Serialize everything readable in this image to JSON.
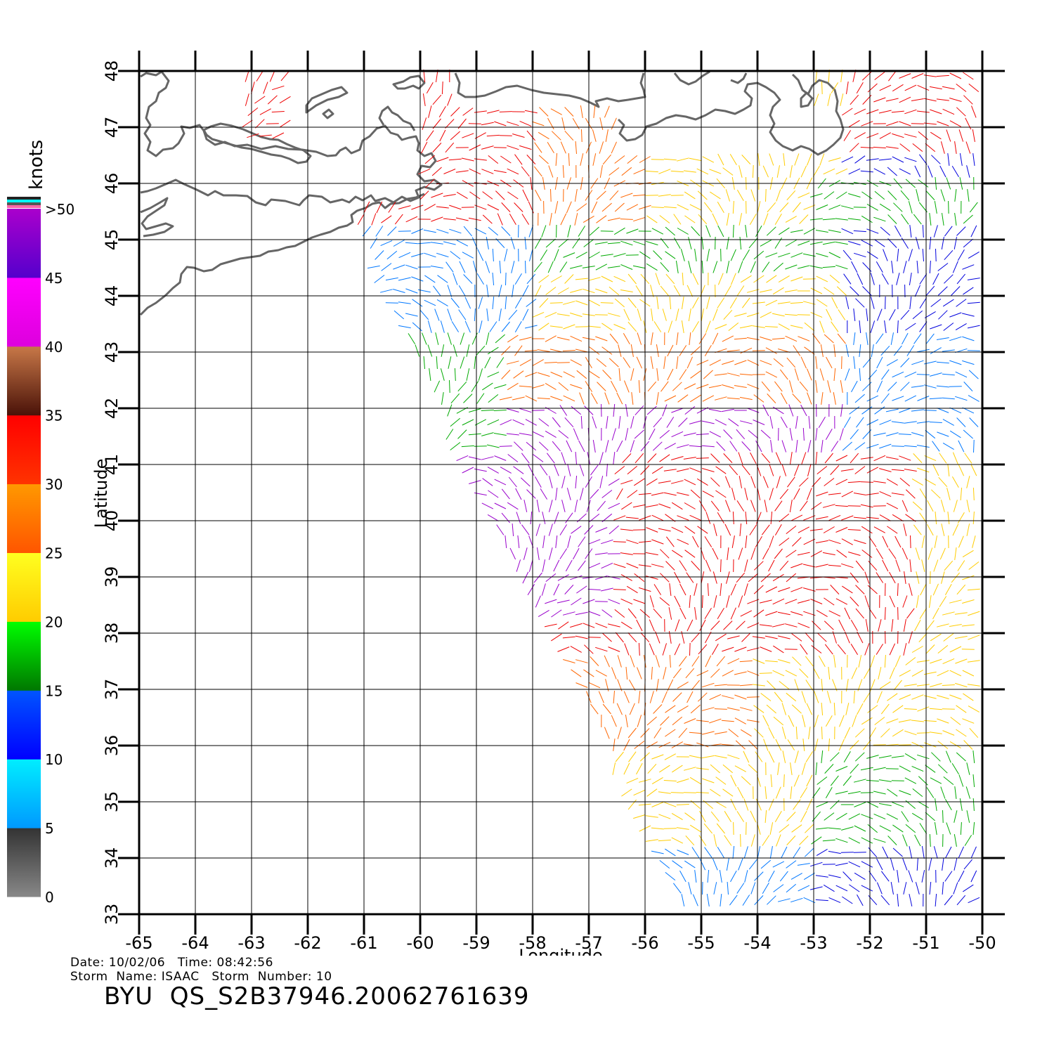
{
  "map": {
    "axes": {
      "xlabel": "Longitude",
      "ylabel": "Latitude",
      "lon_range": [
        -65,
        -50
      ],
      "lat_range": [
        33,
        48
      ],
      "lon_ticks": [
        "-65",
        "-64",
        "-63",
        "-62",
        "-61",
        "-60",
        "-59",
        "-58",
        "-57",
        "-56",
        "-55",
        "-54",
        "-53",
        "-52",
        "-51",
        "-50"
      ],
      "lat_ticks": [
        "33",
        "34",
        "35",
        "36",
        "37",
        "38",
        "39",
        "40",
        "41",
        "42",
        "43",
        "44",
        "45",
        "46",
        "47",
        "48"
      ]
    },
    "colorbar": {
      "title": "knots",
      "labels": [
        "0",
        "5",
        "10",
        "15",
        "20",
        "25",
        "30",
        "35",
        "40",
        "45",
        ">50"
      ],
      "bands": [
        {
          "from": 0,
          "to": 5,
          "top": "#333333",
          "bottom": "#888888"
        },
        {
          "from": 5,
          "to": 10,
          "top": "#00eeff",
          "bottom": "#0099ff"
        },
        {
          "from": 10,
          "to": 15,
          "top": "#0055ff",
          "bottom": "#0000ff"
        },
        {
          "from": 15,
          "to": 20,
          "top": "#00ff00",
          "bottom": "#007700"
        },
        {
          "from": 20,
          "to": 25,
          "top": "#ffff20",
          "bottom": "#ffcc00"
        },
        {
          "from": 25,
          "to": 30,
          "top": "#ff9900",
          "bottom": "#ff5500"
        },
        {
          "from": 30,
          "to": 35,
          "top": "#ff0000",
          "bottom": "#ff3300"
        },
        {
          "from": 35,
          "to": 40,
          "top": "#c87848",
          "bottom": "#4a1208"
        },
        {
          "from": 40,
          "to": 45,
          "top": "#ff00ff",
          "bottom": "#dd00dd"
        },
        {
          "from": 45,
          "to": 50,
          "top": "#aa00cc",
          "bottom": "#5500cc"
        }
      ],
      "cap_colors": [
        "#222222",
        "#00ffff",
        "#555555",
        "#ff66aa"
      ]
    },
    "wind_colors": {
      "dark_blue": "#0000dd",
      "blue": "#0077ff",
      "green": "#00aa00",
      "yellow": "#ffcc00",
      "orange": "#ff6600",
      "red": "#ee0000",
      "purple": "#9900cc",
      "black": "#000000"
    },
    "coast_color": "#666666"
  },
  "footer": {
    "date_time": "Date: 10/02/06   Time: 08:42:56",
    "storm_info": "Storm  Name: ISAAC   Storm  Number: 10",
    "title": "BYU  QS_S2B37946.20062761639"
  }
}
